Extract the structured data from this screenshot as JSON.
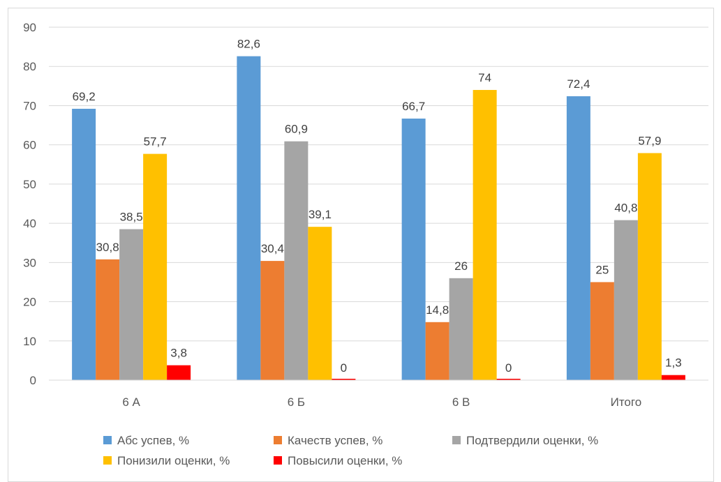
{
  "chart_data": {
    "type": "bar",
    "title": "",
    "xlabel": "",
    "ylabel": "",
    "ylim": [
      0,
      90
    ],
    "ytick_step": 10,
    "grid": true,
    "legend_position": "bottom",
    "categories": [
      "6 А",
      "6 Б",
      "6 В",
      "Итого"
    ],
    "series": [
      {
        "name": "Абс успев, %",
        "color": "#5b9bd5",
        "values": [
          69.2,
          82.6,
          66.7,
          72.4
        ],
        "labels": [
          "69,2",
          "82,6",
          "66,7",
          "72,4"
        ]
      },
      {
        "name": "Качеств успев, %",
        "color": "#ed7d31",
        "values": [
          30.8,
          30.4,
          14.8,
          25
        ],
        "labels": [
          "30,8",
          "30,4",
          "14,8",
          "25"
        ]
      },
      {
        "name": "Подтвердили  оценки, %",
        "color": "#a5a5a5",
        "values": [
          38.5,
          60.9,
          26,
          40.8
        ],
        "labels": [
          "38,5",
          "60,9",
          "26",
          "40,8"
        ]
      },
      {
        "name": "Понизили  оценки, %",
        "color": "#ffc000",
        "values": [
          57.7,
          39.1,
          74,
          57.9
        ],
        "labels": [
          "57,7",
          "39,1",
          "74",
          "57,9"
        ]
      },
      {
        "name": "Повысили  оценки, %",
        "color": "#ff0000",
        "values": [
          3.8,
          0,
          0,
          1.3
        ],
        "labels": [
          "3,8",
          "0",
          "0",
          "1,3"
        ]
      }
    ]
  }
}
